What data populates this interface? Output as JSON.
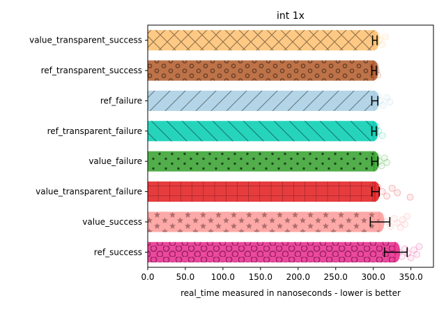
{
  "chart_data": {
    "type": "bar",
    "orientation": "horizontal",
    "title": "int 1x",
    "xlabel": "real_time measured in nanoseconds - lower is better",
    "ylabel": "",
    "xlim": [
      0,
      380
    ],
    "xticks": [
      "0.0",
      "50.0",
      "100.0",
      "150.0",
      "200.0",
      "250.0",
      "300.0",
      "350.0"
    ],
    "xtick_values": [
      0,
      50,
      100,
      150,
      200,
      250,
      300,
      350
    ],
    "grid": false,
    "categories": [
      "value_transparent_success",
      "ref_transparent_success",
      "ref_failure",
      "ref_transparent_failure",
      "value_failure",
      "value_transparent_failure",
      "value_success",
      "ref_success"
    ],
    "values": [
      302,
      301,
      302,
      301,
      302,
      303,
      309,
      330
    ],
    "errors": [
      3,
      3,
      4,
      3,
      4,
      5,
      13,
      15
    ],
    "colors": [
      "#fdbf6f",
      "#b15928",
      "#a6cee3",
      "#00ccb0",
      "#33a02c",
      "#e31a1c",
      "#fb9a99",
      "#e7298a"
    ],
    "hatches": [
      "cross",
      "rings",
      "slash",
      "backslash",
      "dots",
      "grid",
      "stars",
      "circles"
    ],
    "samples": [
      [
        298,
        301,
        303,
        305,
        308,
        312,
        316
      ],
      [
        299,
        300,
        302,
        303,
        304,
        306
      ],
      [
        299,
        301,
        303,
        306,
        309,
        313,
        318,
        322
      ],
      [
        299,
        300,
        302,
        304,
        307,
        312
      ],
      [
        298,
        300,
        302,
        305,
        308,
        311,
        315,
        318
      ],
      [
        299,
        301,
        303,
        306,
        312,
        318,
        325,
        332,
        349
      ],
      [
        296,
        301,
        306,
        312,
        318,
        323,
        328,
        332,
        336,
        339,
        342,
        345
      ],
      [
        311,
        318,
        325,
        330,
        334,
        338,
        342,
        346,
        350,
        354,
        358,
        361
      ]
    ]
  }
}
